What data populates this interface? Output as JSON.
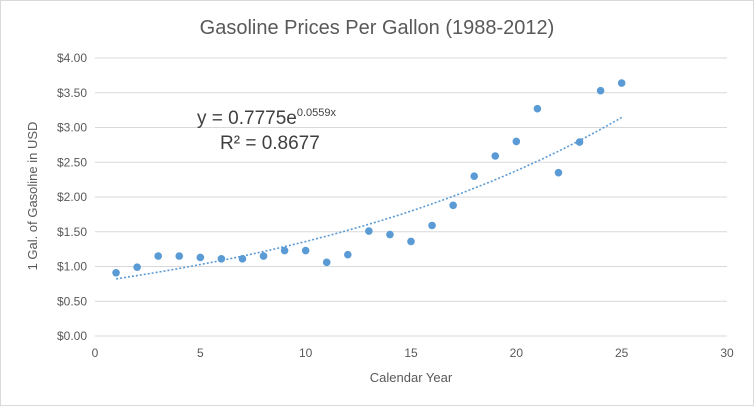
{
  "chart_data": {
    "type": "scatter",
    "title": "Gasoline Prices Per Gallon (1988-2012)",
    "xlabel": "Calendar Year",
    "ylabel": "1 Gal. of Gasoline in USD",
    "xlim": [
      0,
      30
    ],
    "ylim": [
      0,
      4
    ],
    "x_ticks": [
      0,
      5,
      10,
      15,
      20,
      25,
      30
    ],
    "x_tick_labels": [
      "0",
      "5",
      "10",
      "15",
      "20",
      "25",
      "30"
    ],
    "y_ticks": [
      0,
      0.5,
      1,
      1.5,
      2,
      2.5,
      3,
      3.5,
      4
    ],
    "y_tick_labels": [
      "$0.00",
      "$0.50",
      "$1.00",
      "$1.50",
      "$2.00",
      "$2.50",
      "$3.00",
      "$3.50",
      "$4.00"
    ],
    "grid": true,
    "colors": {
      "marker": "#5b9bd5",
      "trendline": "#5b9bd5",
      "grid": "#d9d9d9",
      "text": "#595959"
    },
    "series": [
      {
        "x": [
          1,
          2,
          3,
          4,
          5,
          6,
          7,
          8,
          9,
          10,
          11,
          12,
          13,
          14,
          15,
          16,
          17,
          18,
          19,
          20,
          21,
          22,
          23,
          24,
          25
        ],
        "y": [
          0.91,
          0.99,
          1.15,
          1.15,
          1.13,
          1.11,
          1.11,
          1.15,
          1.23,
          1.23,
          1.06,
          1.17,
          1.51,
          1.46,
          1.36,
          1.59,
          1.88,
          2.3,
          2.59,
          2.8,
          3.27,
          2.35,
          2.79,
          3.53,
          3.64
        ]
      }
    ],
    "trendline": {
      "type": "exponential",
      "a": 0.7775,
      "b": 0.0559,
      "x_range": [
        1,
        25
      ],
      "equation_label": {
        "prefix": "y = 0.7775e",
        "exponent": "0.0559x"
      },
      "r2_label": "R² = 0.8677"
    }
  }
}
